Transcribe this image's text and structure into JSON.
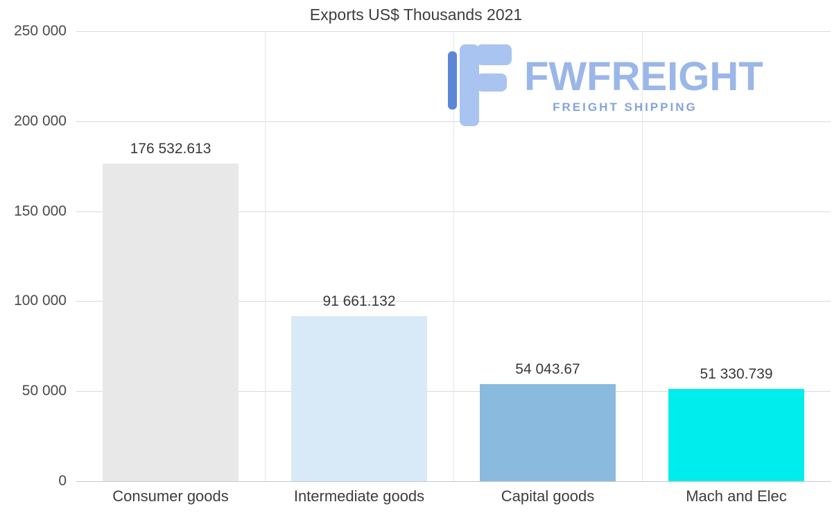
{
  "chart_data": {
    "type": "bar",
    "title": "Exports US$ Thousands 2021",
    "categories": [
      "Consumer goods",
      "Intermediate goods",
      "Capital goods",
      "Mach and Elec"
    ],
    "values": [
      176532.613,
      91661.132,
      54043.67,
      51330.739
    ],
    "value_labels": [
      "176 532.613",
      "91 661.132",
      "54 043.67",
      "51 330.739"
    ],
    "bar_colors": [
      "#e8e8e8",
      "#d8e9f8",
      "#8abade",
      "#00eded"
    ],
    "ylim": [
      0,
      250000
    ],
    "yticks": [
      "250 000",
      "200 000",
      "150 000",
      "100 000",
      "50 000",
      "0"
    ],
    "xlabel": "",
    "ylabel": "",
    "grid": true,
    "legend": "none"
  },
  "watermark": {
    "brand": "FWFREIGHT",
    "tagline": "FREIGHT SHIPPING",
    "text_color": "#9bb6e8",
    "tagline_color": "#84a3e0",
    "icon_light": "#a9c4f0",
    "icon_dark": "#5c87d6"
  }
}
